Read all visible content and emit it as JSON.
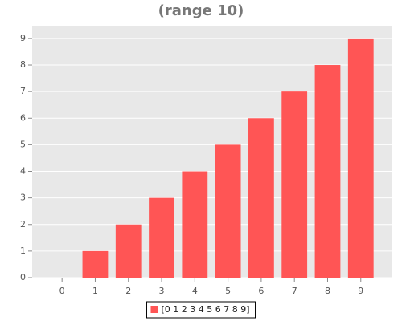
{
  "chart_data": {
    "type": "bar",
    "title": "(range 10)",
    "x": [
      0,
      1,
      2,
      3,
      4,
      5,
      6,
      7,
      8,
      9
    ],
    "series": [
      {
        "name": "[0 1 2 3 4 5 6 7 8 9]",
        "color": "#ff5555",
        "values": [
          0,
          1,
          2,
          3,
          4,
          5,
          6,
          7,
          8,
          9
        ]
      }
    ],
    "xlim": [
      -0.9,
      9.95
    ],
    "xticks": [
      0,
      1,
      2,
      3,
      4,
      5,
      6,
      7,
      8,
      9
    ],
    "ylim": [
      0,
      9.45
    ],
    "yticks": [
      0,
      1,
      2,
      3,
      4,
      5,
      6,
      7,
      8,
      9
    ],
    "grid": true,
    "legend": "bottom"
  }
}
